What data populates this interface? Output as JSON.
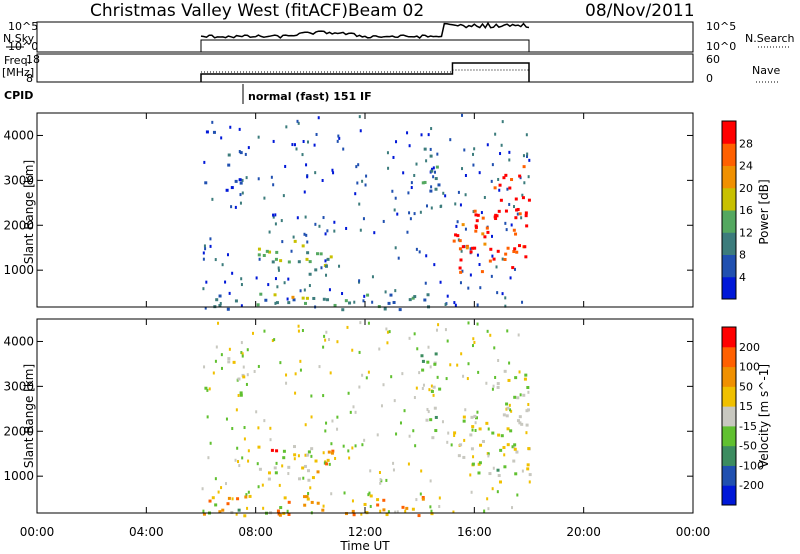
{
  "header": {
    "title": "Christmas Valley West (fitACF)",
    "beam": "Beam 02",
    "date": "08/Nov/2011"
  },
  "summary_panels": {
    "nsky_label": "N.Sky",
    "nsky_ticks": [
      "10^5",
      "10^0"
    ],
    "nsearch_label": "N.Search",
    "nsearch_ticks": [
      "10^5",
      "10^0"
    ],
    "freq_label_1": "Freq.",
    "freq_label_2": "[MHz]",
    "freq_ticks": [
      "18",
      "8"
    ],
    "nave_label": "Nave",
    "nave_ticks": [
      "60",
      "0"
    ],
    "cpid_label": "CPID",
    "cpid_text": "normal (fast) 151 IF"
  },
  "chart_data": [
    {
      "type": "heatmap",
      "name": "power",
      "ylabel": "Slant Range [km]",
      "yticks": [
        "4000",
        "3000",
        "2000",
        "1000"
      ],
      "colorbar_label": "Power [dB]",
      "colorbar_ticks": [
        "28",
        "24",
        "20",
        "16",
        "12",
        "8",
        "4"
      ],
      "colors": [
        "#0018d8",
        "#2050b0",
        "#3c7c7c",
        "#54a860",
        "#c8c000",
        "#f09000",
        "#ff6000",
        "#ff0000"
      ],
      "blobs": [
        {
          "t0": 6.9,
          "t1": 7.6,
          "r0": 2800,
          "r1": 3800,
          "level": 1
        },
        {
          "t0": 6.0,
          "t1": 6.4,
          "r0": 2800,
          "r1": 3000,
          "level": 1
        },
        {
          "t0": 6.1,
          "t1": 6.5,
          "r0": 3900,
          "r1": 4400,
          "level": 0
        },
        {
          "t0": 8.0,
          "t1": 9.8,
          "r0": 1100,
          "r1": 1700,
          "level": 3
        },
        {
          "t0": 8.6,
          "t1": 9.0,
          "r0": 1200,
          "r1": 1400,
          "level": 4
        },
        {
          "t0": 9.8,
          "t1": 11.0,
          "r0": 800,
          "r1": 1600,
          "level": 3
        },
        {
          "t0": 6.0,
          "t1": 14.5,
          "r0": 150,
          "r1": 500,
          "level": 2
        },
        {
          "t0": 8.5,
          "t1": 10.5,
          "r0": 300,
          "r1": 500,
          "level": 4
        },
        {
          "t0": 14.0,
          "t1": 14.7,
          "r0": 2500,
          "r1": 3800,
          "level": 2
        },
        {
          "t0": 15.2,
          "t1": 18.0,
          "r0": 900,
          "r1": 2400,
          "level": 7
        },
        {
          "t0": 16.7,
          "t1": 18.0,
          "r0": 2300,
          "r1": 3400,
          "level": 7
        },
        {
          "t0": 15.5,
          "t1": 16.5,
          "r0": 1500,
          "r1": 2200,
          "level": 6
        }
      ]
    },
    {
      "type": "heatmap",
      "name": "velocity",
      "ylabel": "Slant Range [km]",
      "yticks": [
        "4000",
        "3000",
        "2000",
        "1000"
      ],
      "colorbar_label": "Velocity [m s^-1]",
      "colorbar_ticks": [
        "200",
        "100",
        "50",
        "15",
        "-15",
        "-50",
        "-100",
        "-200"
      ],
      "colors": [
        "#0018d8",
        "#2050b0",
        "#3c8c60",
        "#60c030",
        "#c8c8c0",
        "#f0c000",
        "#f09000",
        "#ff6000",
        "#ff0000"
      ],
      "blobs": [
        {
          "t0": 6.9,
          "t1": 7.6,
          "r0": 2800,
          "r1": 3800,
          "level": 4
        },
        {
          "t0": 6.0,
          "t1": 6.4,
          "r0": 2800,
          "r1": 3000,
          "level": 4
        },
        {
          "t0": 8.0,
          "t1": 10.5,
          "r0": 900,
          "r1": 1700,
          "level": 4
        },
        {
          "t0": 8.5,
          "t1": 9.5,
          "r0": 1500,
          "r1": 1700,
          "level": 8
        },
        {
          "t0": 10.0,
          "t1": 11.0,
          "r0": 1000,
          "r1": 1600,
          "level": 6
        },
        {
          "t0": 6.0,
          "t1": 14.5,
          "r0": 150,
          "r1": 600,
          "level": 6
        },
        {
          "t0": 6.0,
          "t1": 9.0,
          "r0": 200,
          "r1": 400,
          "level": 3
        },
        {
          "t0": 14.0,
          "t1": 14.7,
          "r0": 1800,
          "r1": 3800,
          "level": 3
        },
        {
          "t0": 15.2,
          "t1": 18.0,
          "r0": 900,
          "r1": 2400,
          "level": 4
        },
        {
          "t0": 16.7,
          "t1": 18.0,
          "r0": 2300,
          "r1": 3400,
          "level": 4
        },
        {
          "t0": 16.5,
          "t1": 17.2,
          "r0": 900,
          "r1": 1300,
          "level": 3
        }
      ]
    }
  ],
  "xaxis": {
    "label": "Time UT",
    "ticks": [
      "00:00",
      "04:00",
      "08:00",
      "12:00",
      "16:00",
      "20:00",
      "00:00"
    ],
    "range_hours": [
      0,
      24
    ]
  },
  "yaxis_range_km": [
    180,
    4500
  ],
  "data_window_hours": [
    6.0,
    18.0
  ]
}
